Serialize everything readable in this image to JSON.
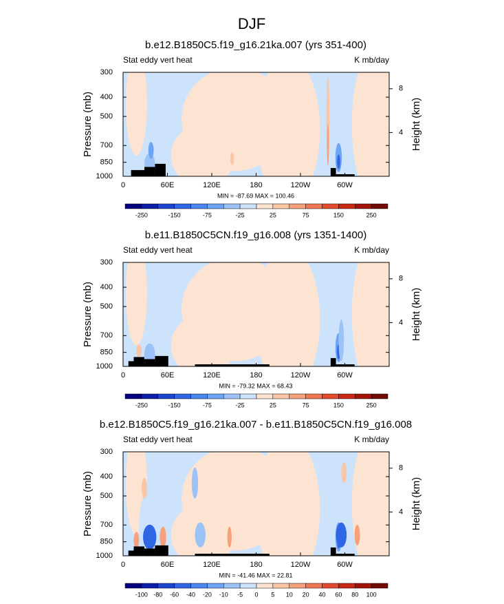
{
  "title": "DJF",
  "chart_data": [
    {
      "type": "contour",
      "title": "b.e12.B1850C5.f19_g16.21ka.007 (yrs 351-400)",
      "left_string": "Stat eddy vert heat",
      "right_string": "K mb/day",
      "ylabel": "Pressure (mb)",
      "y2label": "Height (km)",
      "log_y": true,
      "ylim": [
        1000,
        300
      ],
      "yticks": [
        300,
        400,
        500,
        700,
        850,
        1000
      ],
      "y2lim": [
        0,
        9.5
      ],
      "y2ticks": [
        4,
        8
      ],
      "xlim": [
        0,
        360
      ],
      "xticks": [
        0,
        {
          "value": 60,
          "label": "60E"
        },
        {
          "value": 120,
          "label": "120E"
        },
        180,
        {
          "value": 240,
          "label": "120W"
        },
        {
          "value": 300,
          "label": "60W"
        }
      ],
      "annotation": "MIN = -87.69  MAX = 100.46",
      "colorbar_labels": [
        -250,
        -150,
        -75,
        -25,
        25,
        75,
        150,
        250
      ],
      "colorbar_label_step": 2,
      "colorbar_colors": [
        "#06007f",
        "#0b1fa6",
        "#1c44cc",
        "#2f66e3",
        "#4a86ef",
        "#6da4f4",
        "#9cc3f8",
        "#cde3fb",
        "#fde4d2",
        "#fbc6a6",
        "#f6a07c",
        "#f07552",
        "#e24b2b",
        "#c92913",
        "#a3130a",
        "#730905"
      ]
    },
    {
      "type": "contour",
      "title": "b.e11.B1850C5CN.f19_g16.008 (yrs 1351-1400)",
      "left_string": "Stat eddy vert heat",
      "right_string": "K mb/day",
      "ylabel": "Pressure (mb)",
      "y2label": "Height (km)",
      "log_y": true,
      "ylim": [
        1000,
        300
      ],
      "yticks": [
        300,
        400,
        500,
        700,
        850,
        1000
      ],
      "y2lim": [
        0,
        9.5
      ],
      "y2ticks": [
        4,
        8
      ],
      "xlim": [
        0,
        360
      ],
      "xticks": [
        0,
        {
          "value": 60,
          "label": "60E"
        },
        {
          "value": 120,
          "label": "120E"
        },
        180,
        {
          "value": 240,
          "label": "120W"
        },
        {
          "value": 300,
          "label": "60W"
        }
      ],
      "annotation": "MIN = -79.32  MAX = 68.43",
      "colorbar_labels": [
        -250,
        -150,
        -75,
        -25,
        25,
        75,
        150,
        250
      ],
      "colorbar_label_step": 2,
      "colorbar_colors": [
        "#06007f",
        "#0b1fa6",
        "#1c44cc",
        "#2f66e3",
        "#4a86ef",
        "#6da4f4",
        "#9cc3f8",
        "#cde3fb",
        "#fde4d2",
        "#fbc6a6",
        "#f6a07c",
        "#f07552",
        "#e24b2b",
        "#c92913",
        "#a3130a",
        "#730905"
      ]
    },
    {
      "type": "contour",
      "title": "b.e12.B1850C5.f19_g16.21ka.007 - b.e11.B1850C5CN.f19_g16.008",
      "left_string": "Stat eddy vert heat",
      "right_string": "K mb/day",
      "ylabel": "Pressure (mb)",
      "y2label": "Height (km)",
      "log_y": true,
      "ylim": [
        1000,
        300
      ],
      "yticks": [
        300,
        400,
        500,
        700,
        850,
        1000
      ],
      "y2lim": [
        0,
        9.5
      ],
      "y2ticks": [
        4,
        8
      ],
      "xlim": [
        0,
        360
      ],
      "xticks": [
        0,
        {
          "value": 60,
          "label": "60E"
        },
        {
          "value": 120,
          "label": "120E"
        },
        180,
        {
          "value": 240,
          "label": "120W"
        },
        {
          "value": 300,
          "label": "60W"
        }
      ],
      "annotation": "MIN = -41.46  MAX = 22.81",
      "colorbar_labels": [
        -100,
        -80,
        -60,
        -40,
        -20,
        -10,
        -5,
        0,
        5,
        10,
        20,
        40,
        60,
        80,
        100
      ],
      "colorbar_label_step": 1,
      "colorbar_colors": [
        "#06007f",
        "#0b1fa6",
        "#1c44cc",
        "#2f66e3",
        "#4a86ef",
        "#6da4f4",
        "#9cc3f8",
        "#cde3fb",
        "#fde4d2",
        "#fbc6a6",
        "#f6a07c",
        "#f07552",
        "#e24b2b",
        "#c92913",
        "#a3130a",
        "#730905"
      ]
    }
  ]
}
